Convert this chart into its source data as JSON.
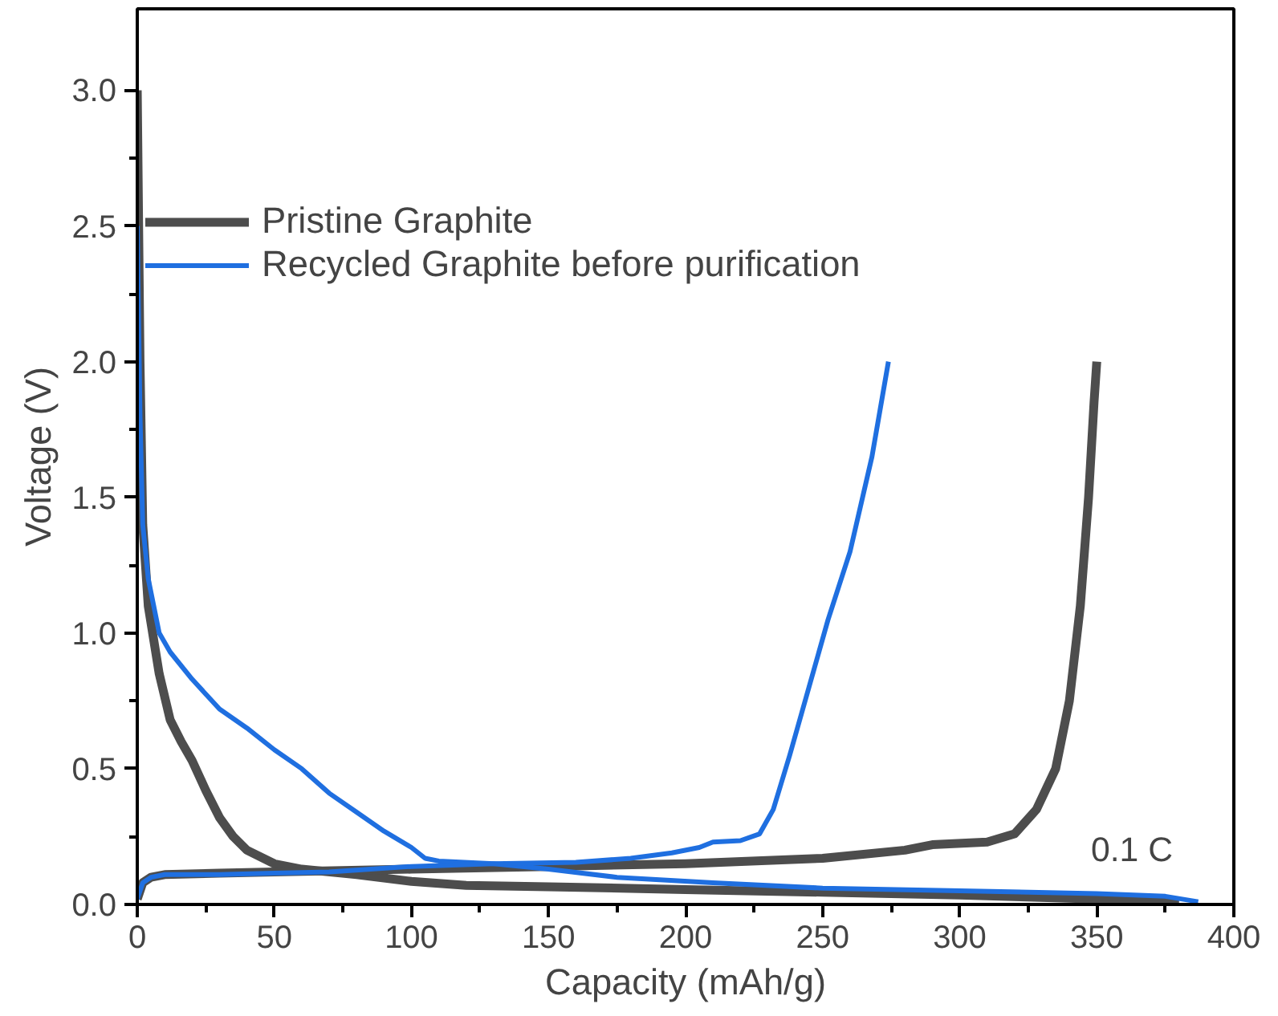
{
  "chart_data": {
    "type": "line",
    "xlabel": "Capacity (mAh/g)",
    "ylabel": "Voltage (V)",
    "xlim": [
      0,
      400
    ],
    "xticks": [
      0,
      50,
      100,
      150,
      200,
      250,
      300,
      350,
      400
    ],
    "ylim": [
      0,
      3.3
    ],
    "yticks": [
      {
        "value": 0,
        "label": "0.0"
      },
      {
        "value": 0.5,
        "label": "0.5"
      },
      {
        "value": 1,
        "label": "1.0"
      },
      {
        "value": 1.5,
        "label": "1.5"
      },
      {
        "value": 2,
        "label": "2.0"
      },
      {
        "value": 2.5,
        "label": "2.5"
      },
      {
        "value": 3,
        "label": "3.0"
      }
    ],
    "grid": false,
    "legend": "top left",
    "line_style": "solid",
    "annotations": [
      "0.1 C"
    ],
    "series": [
      {
        "name": "Pristine Graphite",
        "color": "#4d4d4d",
        "x": [
          0,
          1,
          2,
          4,
          8,
          12,
          16,
          20,
          25,
          30,
          35,
          40,
          50,
          60,
          80,
          100,
          120,
          150,
          200,
          250,
          300,
          350,
          370,
          380
        ],
        "values": [
          3.0,
          2.0,
          1.4,
          1.1,
          0.85,
          0.68,
          0.6,
          0.53,
          0.42,
          0.32,
          0.25,
          0.2,
          0.15,
          0.13,
          0.11,
          0.085,
          0.07,
          0.065,
          0.055,
          0.045,
          0.035,
          0.02,
          0.01,
          0.005
        ]
      },
      {
        "color": "#4d4d4d",
        "x": [
          0,
          2,
          5,
          10,
          30,
          50,
          100,
          150,
          200,
          250,
          280,
          290,
          310,
          320,
          328,
          335,
          340,
          344,
          347,
          349,
          350
        ],
        "values": [
          0.02,
          0.08,
          0.1,
          0.11,
          0.115,
          0.12,
          0.13,
          0.14,
          0.15,
          0.17,
          0.2,
          0.22,
          0.23,
          0.26,
          0.35,
          0.5,
          0.75,
          1.1,
          1.5,
          1.85,
          2.0
        ]
      },
      {
        "name": "Recycled Graphite before purification",
        "color": "#1f6fe0",
        "x": [
          0,
          1,
          2,
          4,
          8,
          12,
          20,
          30,
          40,
          50,
          60,
          70,
          80,
          90,
          100,
          105,
          110,
          130,
          150,
          175,
          210,
          250,
          300,
          350,
          375,
          387
        ],
        "values": [
          2.5,
          1.8,
          1.4,
          1.2,
          1.0,
          0.93,
          0.83,
          0.72,
          0.65,
          0.57,
          0.5,
          0.41,
          0.34,
          0.27,
          0.21,
          0.17,
          0.16,
          0.15,
          0.13,
          0.1,
          0.08,
          0.06,
          0.05,
          0.04,
          0.03,
          0.01
        ]
      },
      {
        "color": "#1f6fe0",
        "x": [
          0,
          2,
          5,
          10,
          30,
          50,
          70,
          100,
          130,
          160,
          180,
          195,
          205,
          210,
          220,
          227,
          232,
          238,
          245,
          252,
          260,
          268,
          274
        ],
        "values": [
          0.02,
          0.08,
          0.1,
          0.11,
          0.11,
          0.115,
          0.12,
          0.14,
          0.15,
          0.155,
          0.17,
          0.19,
          0.21,
          0.23,
          0.235,
          0.26,
          0.35,
          0.55,
          0.8,
          1.05,
          1.3,
          1.65,
          2.0
        ]
      }
    ]
  }
}
